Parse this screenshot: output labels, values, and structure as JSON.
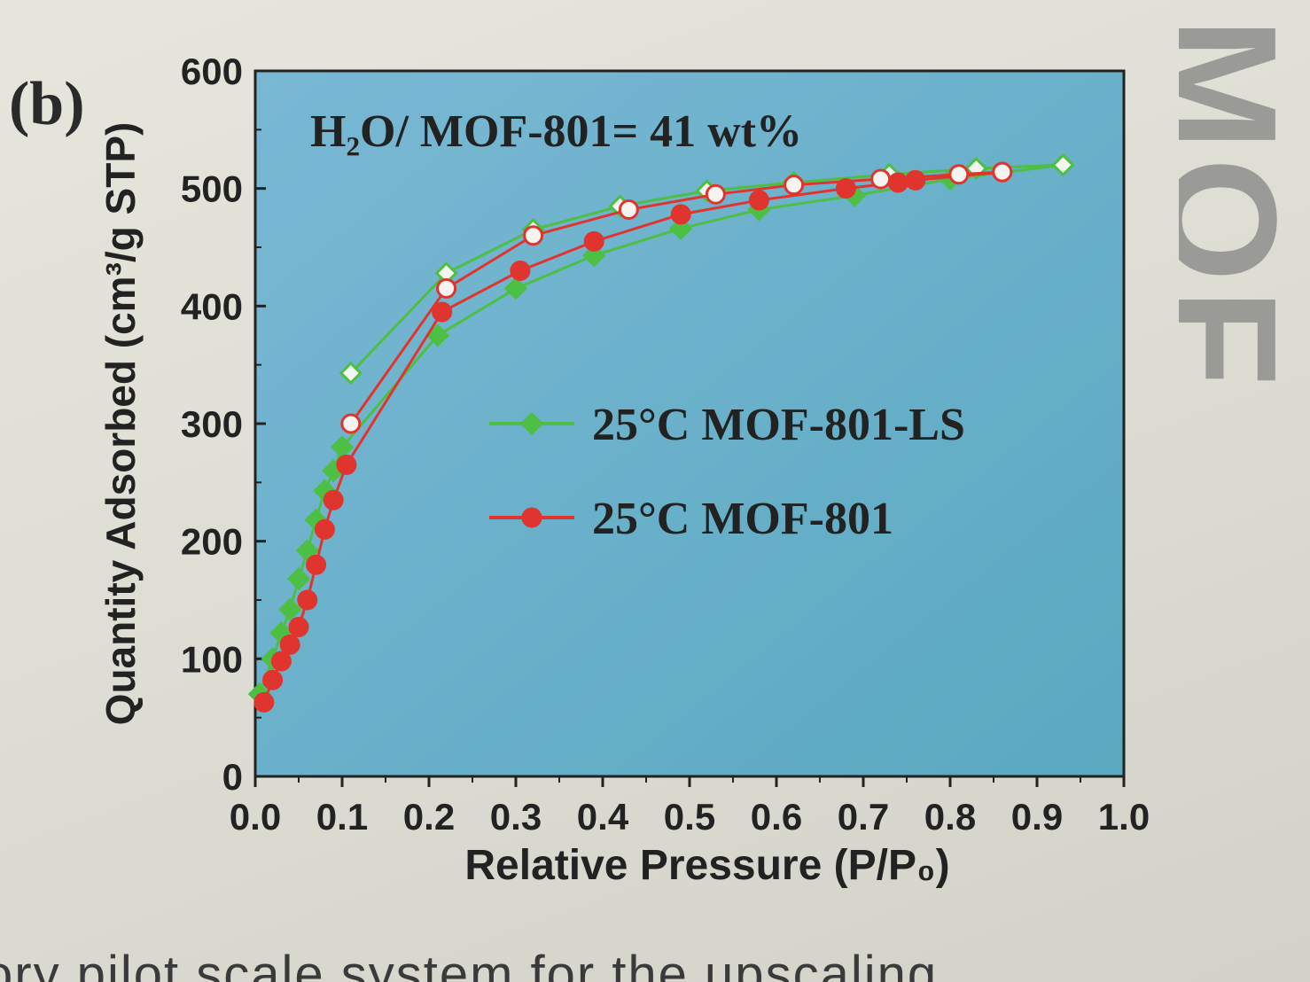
{
  "panel_label": "(b)",
  "caption_fragment": "ory pilot scale system for the upscaling",
  "side_fragment": "MOF",
  "colors": {
    "plot_bg_top": "#7ab8d4",
    "plot_bg_bottom": "#5aa9c0",
    "ls_series": "#4cbf44",
    "mof_series": "#e0342e",
    "axis": "#222222"
  },
  "chart_data": {
    "type": "line",
    "title": "H₂O/ MOF-801= 41 wt%",
    "xlabel": "Relative Pressure (P/P₀)",
    "ylabel": "Quantity Adsorbed (cm³/g STP)",
    "xlim": [
      0.0,
      1.0
    ],
    "ylim": [
      0,
      600
    ],
    "xticks": [
      "0.0",
      "0.1",
      "0.2",
      "0.3",
      "0.4",
      "0.5",
      "0.6",
      "0.7",
      "0.8",
      "0.9",
      "1.0"
    ],
    "yticks": [
      "0",
      "100",
      "200",
      "300",
      "400",
      "500",
      "600"
    ],
    "legend_position": "center-right",
    "series": [
      {
        "name": "25°C MOF-801-LS",
        "marker": "diamond",
        "adsorption": {
          "x": [
            0.005,
            0.02,
            0.03,
            0.04,
            0.05,
            0.06,
            0.07,
            0.08,
            0.09,
            0.1,
            0.21,
            0.3,
            0.39,
            0.49,
            0.58,
            0.69,
            0.8,
            0.93
          ],
          "y": [
            70,
            100,
            122,
            142,
            168,
            192,
            218,
            243,
            260,
            280,
            375,
            415,
            443,
            466,
            482,
            494,
            508,
            520
          ]
        },
        "desorption": {
          "x": [
            0.93,
            0.83,
            0.73,
            0.62,
            0.52,
            0.42,
            0.32,
            0.22,
            0.11
          ],
          "y": [
            520,
            517,
            512,
            505,
            498,
            485,
            465,
            428,
            343
          ]
        }
      },
      {
        "name": "25°C MOF-801",
        "marker": "circle",
        "adsorption": {
          "x": [
            0.01,
            0.02,
            0.03,
            0.04,
            0.05,
            0.06,
            0.07,
            0.08,
            0.09,
            0.105,
            0.215,
            0.305,
            0.39,
            0.49,
            0.58,
            0.68,
            0.74,
            0.76,
            0.86
          ],
          "y": [
            63,
            82,
            98,
            112,
            127,
            150,
            180,
            210,
            235,
            265,
            395,
            430,
            455,
            478,
            490,
            500,
            505,
            507,
            514
          ]
        },
        "desorption": {
          "x": [
            0.86,
            0.81,
            0.72,
            0.62,
            0.53,
            0.43,
            0.32,
            0.22,
            0.11
          ],
          "y": [
            514,
            512,
            508,
            503,
            495,
            482,
            460,
            415,
            300
          ]
        }
      }
    ]
  }
}
